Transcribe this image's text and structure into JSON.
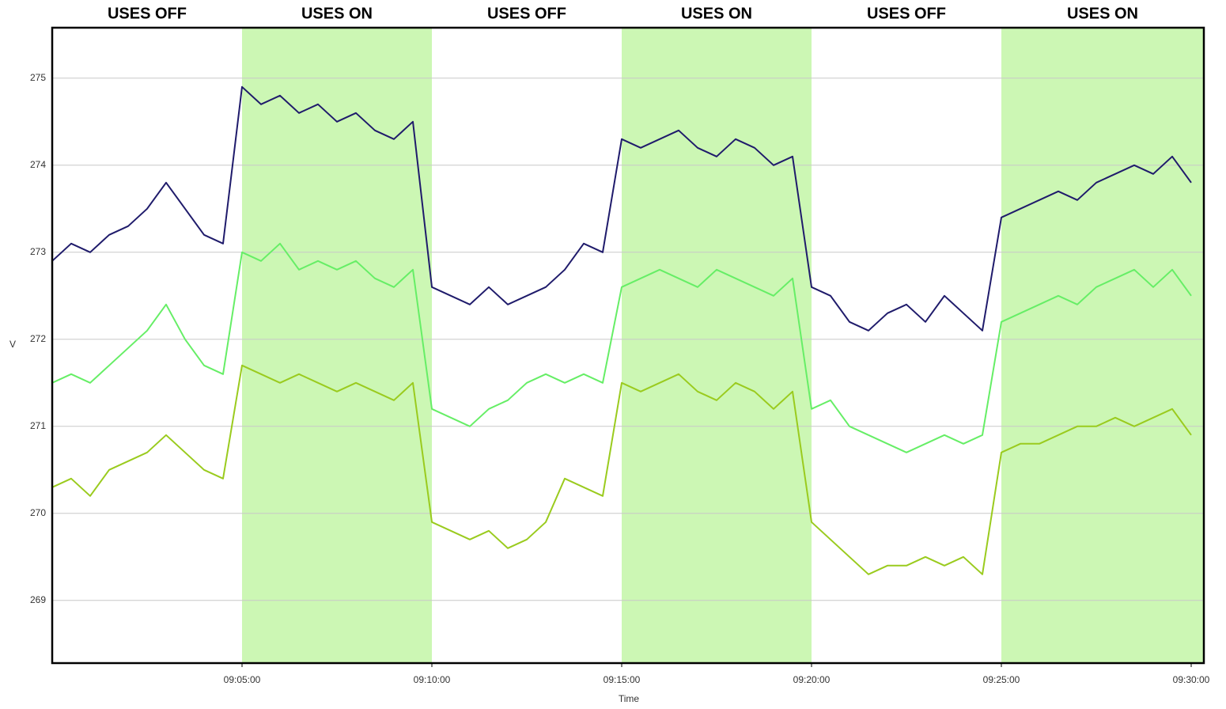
{
  "chart_data": {
    "type": "line",
    "x_label": "Time",
    "y_label": "V",
    "x": [
      "09:00:00",
      "09:00:30",
      "09:01:00",
      "09:01:30",
      "09:02:00",
      "09:02:30",
      "09:03:00",
      "09:03:30",
      "09:04:00",
      "09:04:30",
      "09:05:00",
      "09:05:30",
      "09:06:00",
      "09:06:30",
      "09:07:00",
      "09:07:30",
      "09:08:00",
      "09:08:30",
      "09:09:00",
      "09:09:30",
      "09:10:00",
      "09:10:30",
      "09:11:00",
      "09:11:30",
      "09:12:00",
      "09:12:30",
      "09:13:00",
      "09:13:30",
      "09:14:00",
      "09:14:30",
      "09:15:00",
      "09:15:30",
      "09:16:00",
      "09:16:30",
      "09:17:00",
      "09:17:30",
      "09:18:00",
      "09:18:30",
      "09:19:00",
      "09:19:30",
      "09:20:00",
      "09:20:30",
      "09:21:00",
      "09:21:30",
      "09:22:00",
      "09:22:30",
      "09:23:00",
      "09:23:30",
      "09:24:00",
      "09:24:30",
      "09:25:00",
      "09:25:30",
      "09:26:00",
      "09:26:30",
      "09:27:00",
      "09:27:30",
      "09:28:00",
      "09:28:30",
      "09:29:00",
      "09:29:30",
      "09:30:00"
    ],
    "series": [
      {
        "color": "#1f1b6b",
        "values": [
          272.9,
          273.1,
          273.0,
          273.2,
          273.3,
          273.5,
          273.8,
          273.5,
          273.2,
          273.1,
          274.9,
          274.7,
          274.8,
          274.6,
          274.7,
          274.5,
          274.6,
          274.4,
          274.3,
          274.5,
          272.6,
          272.5,
          272.4,
          272.6,
          272.4,
          272.5,
          272.6,
          272.8,
          273.1,
          273.0,
          274.3,
          274.2,
          274.3,
          274.4,
          274.2,
          274.1,
          274.3,
          274.2,
          274.0,
          274.1,
          272.6,
          272.5,
          272.2,
          272.1,
          272.3,
          272.4,
          272.2,
          272.5,
          272.3,
          272.1,
          273.4,
          273.5,
          273.6,
          273.7,
          273.6,
          273.8,
          273.9,
          274.0,
          273.9,
          274.1,
          273.8
        ]
      },
      {
        "color": "#66ee66",
        "values": [
          271.5,
          271.6,
          271.5,
          271.7,
          271.9,
          272.1,
          272.4,
          272.0,
          271.7,
          271.6,
          273.0,
          272.9,
          273.1,
          272.8,
          272.9,
          272.8,
          272.9,
          272.7,
          272.6,
          272.8,
          271.2,
          271.1,
          271.0,
          271.2,
          271.3,
          271.5,
          271.6,
          271.5,
          271.6,
          271.5,
          272.6,
          272.7,
          272.8,
          272.7,
          272.6,
          272.8,
          272.7,
          272.6,
          272.5,
          272.7,
          271.2,
          271.3,
          271.0,
          270.9,
          270.8,
          270.7,
          270.8,
          270.9,
          270.8,
          270.9,
          272.2,
          272.3,
          272.4,
          272.5,
          272.4,
          272.6,
          272.7,
          272.8,
          272.6,
          272.8,
          272.5
        ]
      },
      {
        "color": "#9acb1e",
        "values": [
          270.3,
          270.4,
          270.2,
          270.5,
          270.6,
          270.7,
          270.9,
          270.7,
          270.5,
          270.4,
          271.7,
          271.6,
          271.5,
          271.6,
          271.5,
          271.4,
          271.5,
          271.4,
          271.3,
          271.5,
          269.9,
          269.8,
          269.7,
          269.8,
          269.6,
          269.7,
          269.9,
          270.4,
          270.3,
          270.2,
          271.5,
          271.4,
          271.5,
          271.6,
          271.4,
          271.3,
          271.5,
          271.4,
          271.2,
          271.4,
          269.9,
          269.7,
          269.5,
          269.3,
          269.4,
          269.4,
          269.5,
          269.4,
          269.5,
          269.3,
          270.7,
          270.8,
          270.8,
          270.9,
          271.0,
          271.0,
          271.1,
          271.0,
          271.1,
          271.2,
          270.9
        ]
      }
    ],
    "periods": [
      {
        "label": "USES OFF",
        "start": "09:00:00",
        "end": "09:05:00",
        "shaded": false
      },
      {
        "label": "USES ON",
        "start": "09:05:00",
        "end": "09:10:00",
        "shaded": true
      },
      {
        "label": "USES OFF",
        "start": "09:10:00",
        "end": "09:15:00",
        "shaded": false
      },
      {
        "label": "USES ON",
        "start": "09:15:00",
        "end": "09:20:00",
        "shaded": true
      },
      {
        "label": "USES OFF",
        "start": "09:20:00",
        "end": "09:25:00",
        "shaded": false
      },
      {
        "label": "USES ON",
        "start": "09:25:00",
        "end": "09:30:20",
        "shaded": true
      }
    ],
    "shade_color": "#ccf7b4",
    "xlim": [
      "09:00:00",
      "09:30:20"
    ],
    "xticks": [
      "09:05:00",
      "09:10:00",
      "09:15:00",
      "09:20:00",
      "09:25:00",
      "09:30:00"
    ],
    "ylim": [
      268.28,
      275.58
    ],
    "yticks": [
      269,
      270,
      271,
      272,
      273,
      274,
      275
    ],
    "grid": true
  }
}
